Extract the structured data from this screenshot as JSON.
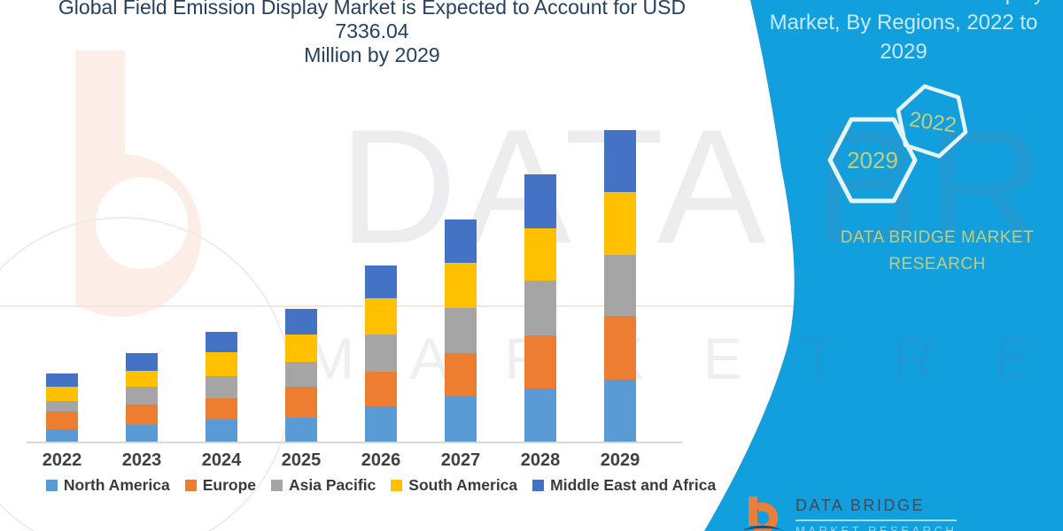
{
  "header": {
    "title_line1": "Global Field Emission Display Market is Expected to Account for USD 7336.04",
    "title_line2": "Million by 2029"
  },
  "side_panel": {
    "heading_line1": "Global Field Emission Display",
    "heading_line2": "Market, By Regions, 2022 to 2029",
    "hexagon_front_label": "2029",
    "hexagon_back_label": "2022",
    "brand_line1": "DATA BRIDGE MARKET",
    "brand_line2": "RESEARCH",
    "panel_color": "#119fde",
    "heading_text_color": "#c7eaf8",
    "accent_text_color": "#c8cc74"
  },
  "watermark": {
    "line1": "DATA BRIDGE",
    "line2": "M A R K E T   R E S E A R C H"
  },
  "footer_logo": {
    "name": "DATA BRIDGE",
    "tagline": "MARKET RESEARCH"
  },
  "chart_data": {
    "type": "bar",
    "stacked": true,
    "unit": "USD Million",
    "title": "Global Field Emission Display Market, By Regions, 2022 to 2029",
    "xlabel": "",
    "ylabel": "",
    "categories": [
      "2022",
      "2023",
      "2024",
      "2025",
      "2026",
      "2027",
      "2028",
      "2029"
    ],
    "series": [
      {
        "name": "North America",
        "color": "#5b9bd5",
        "values": [
          298,
          403,
          522,
          570,
          834,
          1058,
          1252,
          1460
        ]
      },
      {
        "name": "Europe",
        "color": "#ed7d31",
        "values": [
          405,
          467,
          501,
          718,
          820,
          1028,
          1252,
          1496
        ]
      },
      {
        "name": "Asia Pacific",
        "color": "#a5a5a5",
        "values": [
          250,
          423,
          522,
          590,
          870,
          1064,
          1287,
          1446
        ]
      },
      {
        "name": "South America",
        "color": "#ffc000",
        "values": [
          334,
          376,
          557,
          640,
          855,
          1058,
          1237,
          1475
        ]
      },
      {
        "name": "Middle East and Africa",
        "color": "#4472c4",
        "values": [
          313,
          423,
          486,
          611,
          778,
          1028,
          1266,
          1459
        ]
      }
    ],
    "totals": [
      1600,
      2092,
      2588,
      3129,
      4157,
      5236,
      6294,
      7336.04
    ],
    "ylim": [
      0,
      7800
    ],
    "gridlines": false,
    "y_axis_visible": false,
    "legend_position": "bottom"
  }
}
